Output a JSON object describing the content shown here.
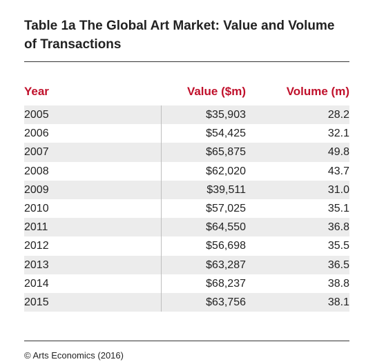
{
  "title": "Table 1a  The Global Art Market: Value and Volume of Transactions",
  "columns": {
    "year": "Year",
    "value": "Value ($m)",
    "volume": "Volume (m)"
  },
  "rows": [
    {
      "year": "2005",
      "value": "$35,903",
      "volume": "28.2"
    },
    {
      "year": "2006",
      "value": "$54,425",
      "volume": "32.1"
    },
    {
      "year": "2007",
      "value": "$65,875",
      "volume": "49.8"
    },
    {
      "year": "2008",
      "value": "$62,020",
      "volume": "43.7"
    },
    {
      "year": "2009",
      "value": "$39,511",
      "volume": "31.0"
    },
    {
      "year": "2010",
      "value": "$57,025",
      "volume": "35.1"
    },
    {
      "year": "2011",
      "value": "$64,550",
      "volume": "36.8"
    },
    {
      "year": "2012",
      "value": "$56,698",
      "volume": "35.5"
    },
    {
      "year": "2013",
      "value": "$63,287",
      "volume": "36.5"
    },
    {
      "year": "2014",
      "value": "$68,237",
      "volume": "38.8"
    },
    {
      "year": "2015",
      "value": "$63,756",
      "volume": "38.1"
    }
  ],
  "source": "© Arts Economics (2016)",
  "colors": {
    "header_text": "#c0102b",
    "row_shade": "#ececec"
  }
}
